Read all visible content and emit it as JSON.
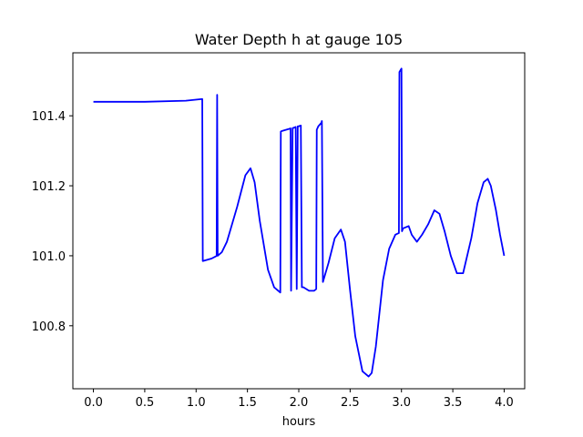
{
  "chart_data": {
    "type": "line",
    "title": "Water Depth h at gauge 105",
    "xlabel": "hours",
    "ylabel": "",
    "xlim": [
      -0.2,
      4.2
    ],
    "ylim": [
      100.62,
      101.58
    ],
    "xticks": [
      0.0,
      0.5,
      1.0,
      1.5,
      2.0,
      2.5,
      3.0,
      3.5,
      4.0
    ],
    "xtick_labels": [
      "0.0",
      "0.5",
      "1.0",
      "1.5",
      "2.0",
      "2.5",
      "3.0",
      "3.5",
      "4.0"
    ],
    "yticks": [
      100.8,
      101.0,
      101.2,
      101.4
    ],
    "ytick_labels": [
      "100.8",
      "101.0",
      "101.2",
      "101.4"
    ],
    "grid": false,
    "series": [
      {
        "color": "#0000ff",
        "x": [
          0.0,
          0.5,
          0.9,
          1.06,
          1.065,
          1.15,
          1.19,
          1.2,
          1.205,
          1.21,
          1.25,
          1.3,
          1.4,
          1.48,
          1.53,
          1.57,
          1.62,
          1.7,
          1.76,
          1.82,
          1.825,
          1.84,
          1.9,
          1.92,
          1.925,
          1.94,
          1.945,
          1.97,
          1.98,
          1.99,
          2.0,
          2.005,
          2.02,
          2.03,
          2.04,
          2.045,
          2.1,
          2.15,
          2.17,
          2.175,
          2.19,
          2.22,
          2.225,
          2.235,
          2.29,
          2.35,
          2.41,
          2.45,
          2.5,
          2.55,
          2.62,
          2.68,
          2.71,
          2.75,
          2.82,
          2.88,
          2.94,
          2.975,
          2.98,
          2.99,
          3.0,
          3.005,
          3.015,
          3.03,
          3.07,
          3.1,
          3.15,
          3.2,
          3.26,
          3.32,
          3.37,
          3.42,
          3.48,
          3.54,
          3.6,
          3.68,
          3.74,
          3.8,
          3.84,
          3.87,
          3.92,
          3.96,
          4.0
        ],
        "y": [
          101.44,
          101.44,
          101.443,
          101.448,
          100.985,
          100.992,
          100.998,
          101.0,
          101.46,
          101.0,
          101.01,
          101.04,
          101.14,
          101.23,
          101.25,
          101.21,
          101.1,
          100.96,
          100.91,
          100.895,
          101.355,
          101.357,
          101.362,
          101.364,
          100.9,
          101.365,
          101.365,
          101.368,
          100.905,
          101.37,
          101.37,
          101.371,
          101.372,
          100.91,
          100.91,
          100.91,
          100.9,
          100.9,
          100.905,
          101.36,
          101.37,
          101.38,
          101.385,
          100.925,
          100.98,
          101.05,
          101.075,
          101.04,
          100.9,
          100.77,
          100.67,
          100.655,
          100.665,
          100.74,
          100.93,
          101.02,
          101.06,
          101.065,
          101.525,
          101.53,
          101.535,
          101.07,
          101.078,
          101.08,
          101.085,
          101.06,
          101.04,
          101.06,
          101.09,
          101.13,
          101.12,
          101.07,
          101.0,
          100.95,
          100.95,
          101.05,
          101.15,
          101.21,
          101.22,
          101.2,
          101.13,
          101.06,
          101.0
        ]
      }
    ]
  }
}
